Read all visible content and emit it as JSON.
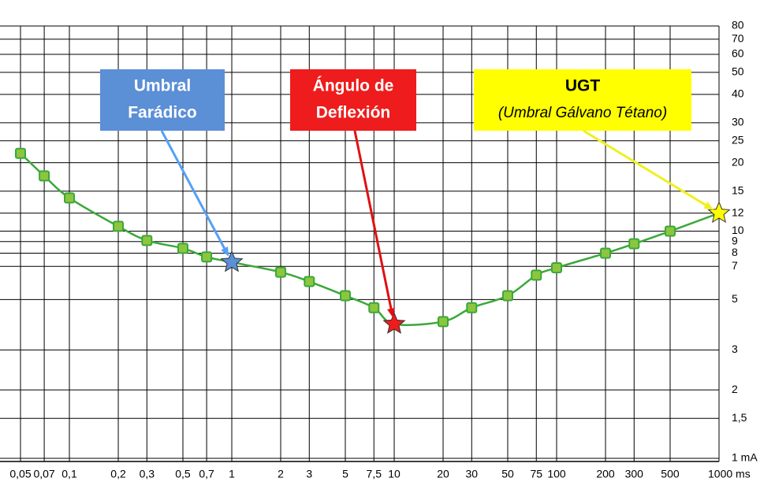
{
  "chart_data": {
    "type": "line",
    "xlog": true,
    "ylog": true,
    "grid": true,
    "xlim": [
      0.05,
      1000
    ],
    "ylim": [
      1,
      80
    ],
    "xticks": [
      {
        "value": 0.05,
        "label": "0,05"
      },
      {
        "value": 0.07,
        "label": "0,07"
      },
      {
        "value": 0.1,
        "label": "0,1"
      },
      {
        "value": 0.2,
        "label": "0,2"
      },
      {
        "value": 0.3,
        "label": "0,3"
      },
      {
        "value": 0.5,
        "label": "0,5"
      },
      {
        "value": 0.7,
        "label": "0,7"
      },
      1,
      2,
      3,
      5,
      {
        "value": 7.5,
        "label": "7,5"
      },
      10,
      20,
      30,
      50,
      75,
      100,
      200,
      300,
      500,
      {
        "value": 1000,
        "label": "1000 ms"
      }
    ],
    "yticks": [
      {
        "value": 1,
        "label": "1 mA"
      },
      {
        "value": 1.5,
        "label": "1,5"
      },
      2,
      3,
      5,
      7,
      8,
      9,
      10,
      12,
      15,
      20,
      25,
      30,
      40,
      50,
      60,
      70,
      80
    ],
    "series": [
      {
        "color": "#3aa83a",
        "marker_color": "#8cc63f",
        "x": [
          0.05,
          0.07,
          0.1,
          0.2,
          0.3,
          0.5,
          0.7,
          1,
          2,
          3,
          5,
          7.5,
          10,
          20,
          30,
          50,
          75,
          100,
          200,
          300,
          500,
          1000
        ],
        "values": [
          22,
          17.5,
          14,
          10.5,
          9.1,
          8.4,
          7.7,
          7.3,
          6.6,
          6,
          5.2,
          4.6,
          3.9,
          4,
          4.6,
          5.2,
          6.4,
          6.9,
          8,
          8.8,
          10,
          12
        ],
        "markers": [
          "square",
          "square",
          "square",
          "square",
          "square",
          "square",
          "square",
          "star",
          "square",
          "square",
          "square",
          "square",
          "star",
          "square",
          "square",
          "square",
          "square",
          "square",
          "square",
          "square",
          "square",
          "star"
        ]
      }
    ],
    "annotations": [
      {
        "lines": [
          "Umbral",
          "Farádico"
        ],
        "color": "#5b8fd6",
        "arrow_color": "#55a0f5",
        "text_color": "#ffffff"
      },
      {
        "lines": [
          "Ángulo de",
          "Deflexión"
        ],
        "color": "#ee1c1c",
        "arrow_color": "#e01010",
        "text_color": "#ffffff"
      },
      {
        "lines": [
          "UGT",
          "(Umbral Gálvano Tétano)"
        ],
        "color": "#ffff00",
        "arrow_color": "#f0f020",
        "text_color": "#000000"
      }
    ]
  }
}
